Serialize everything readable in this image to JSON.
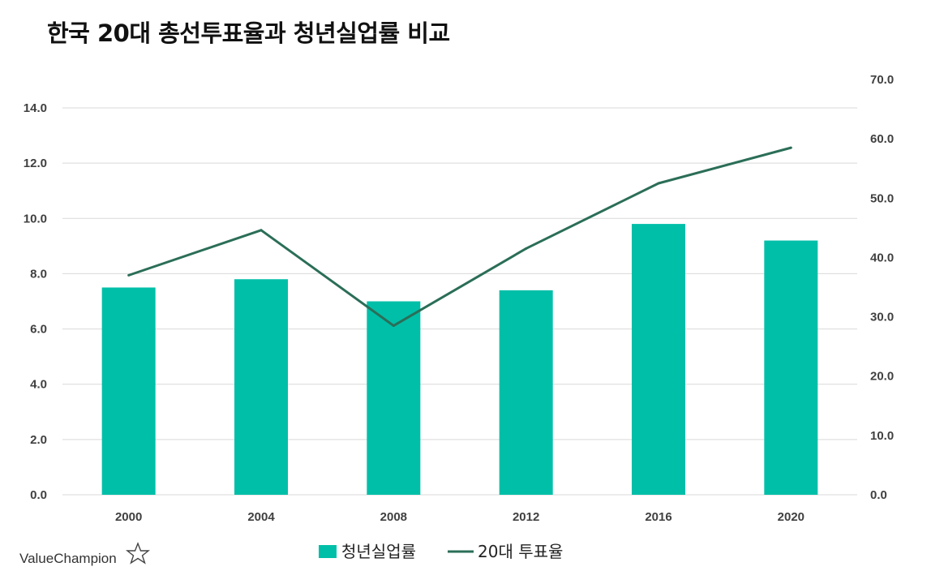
{
  "title": "한국 20대 총선투표율과 청년실업률 비교",
  "brand": "ValueChampion",
  "colors": {
    "bar": "#00BFA8",
    "line": "#2B6E58",
    "grid": "#D9D9D9",
    "axis_text": "#404040"
  },
  "chart_data": {
    "type": "bar+line",
    "categories": [
      "2000",
      "2004",
      "2008",
      "2012",
      "2016",
      "2020"
    ],
    "series": [
      {
        "name": "청년실업률",
        "type": "bar",
        "axis": "left",
        "values": [
          7.5,
          7.8,
          7.0,
          7.4,
          9.8,
          9.2
        ]
      },
      {
        "name": "20대 투표율",
        "type": "line",
        "axis": "right",
        "values": [
          37.0,
          44.6,
          28.5,
          41.5,
          52.5,
          58.5
        ]
      }
    ],
    "y_left": {
      "min": 0,
      "max": 14,
      "step": 2,
      "ticks": [
        "0.0",
        "2.0",
        "4.0",
        "6.0",
        "8.0",
        "10.0",
        "12.0",
        "14.0"
      ]
    },
    "y_right": {
      "min": 0,
      "max": 70,
      "step": 10,
      "ticks": [
        "0.0",
        "10.0",
        "20.0",
        "30.0",
        "40.0",
        "50.0",
        "60.0",
        "70.0"
      ]
    },
    "grid": true,
    "legend_position": "bottom"
  }
}
